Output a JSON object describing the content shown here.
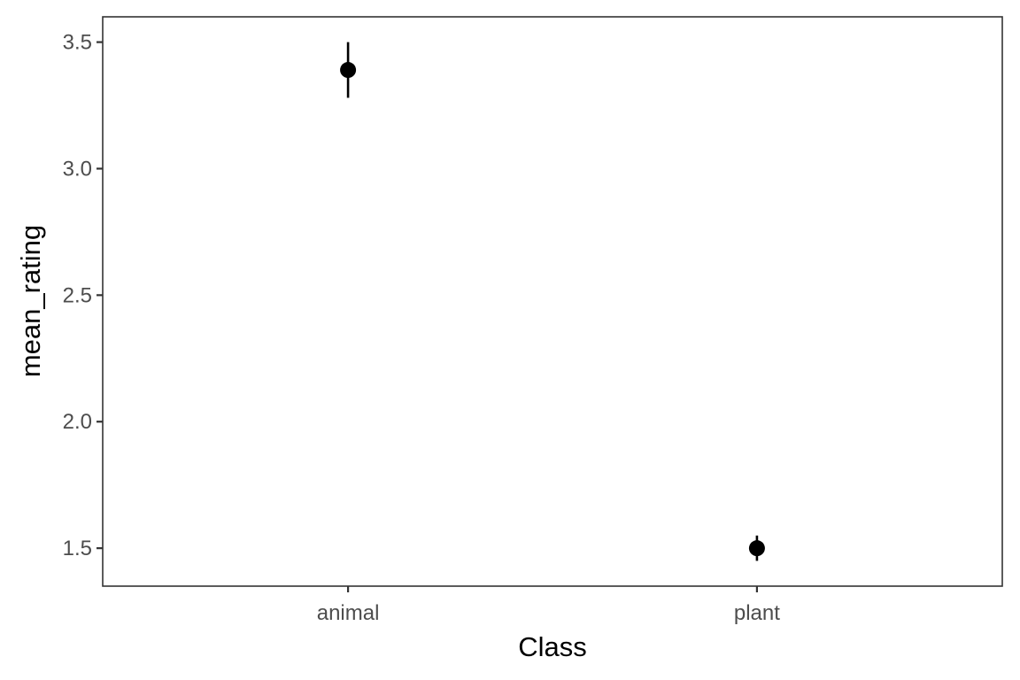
{
  "chart_data": {
    "type": "scatter",
    "xlabel": "Class",
    "ylabel": "mean_rating",
    "categories": [
      "animal",
      "plant"
    ],
    "points": [
      {
        "category": "animal",
        "y": 3.39,
        "ymin": 3.28,
        "ymax": 3.5
      },
      {
        "category": "plant",
        "y": 1.5,
        "ymin": 1.45,
        "ymax": 1.55
      }
    ],
    "ylim": [
      1.35,
      3.6
    ],
    "yticks": [
      1.5,
      2.0,
      2.5,
      3.0,
      3.5
    ],
    "ytick_labels": [
      "1.5",
      "2.0",
      "2.5",
      "3.0",
      "3.5"
    ],
    "grid": false,
    "legend": "none",
    "colors": {
      "point": "#000000",
      "axis": "#333333",
      "tick_text": "#4d4d4d"
    }
  }
}
